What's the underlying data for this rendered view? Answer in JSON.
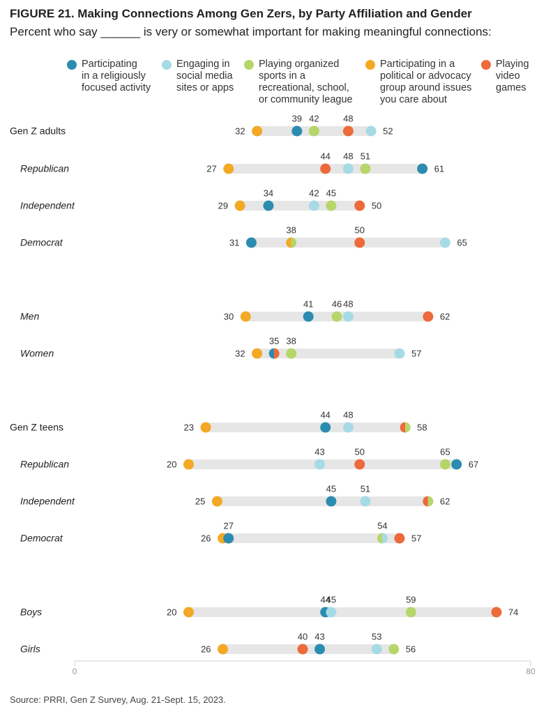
{
  "title": "FIGURE 21. Making Connections Among Gen Zers, by Party Affiliation and Gender",
  "subtitle": "Percent who say ______ is very or somewhat important for making meaningful connections:",
  "source": "Source: PRRI, Gen Z Survey, Aug. 21-Sept. 15, 2023.",
  "legend": [
    {
      "series": "religious",
      "color": "#2b8cb0",
      "lines": [
        "Participating",
        "in a religiously",
        "focused activity"
      ]
    },
    {
      "series": "social",
      "color": "#a6dbe5",
      "lines": [
        "Engaging in",
        "social media",
        "sites or apps"
      ]
    },
    {
      "series": "sports",
      "color": "#b6d66a",
      "lines": [
        "Playing organized",
        "sports in a",
        "recreational, school,",
        "or community league"
      ]
    },
    {
      "series": "political",
      "color": "#f3a925",
      "lines": [
        "Participating in a",
        "political or advocacy",
        "group around issues",
        "you care about"
      ]
    },
    {
      "series": "games",
      "color": "#ed6a3a",
      "lines": [
        "Playing",
        "video",
        "games"
      ]
    }
  ],
  "chart_data": {
    "type": "scatter",
    "subtype": "dot-plot",
    "xlim": [
      0,
      80
    ],
    "xticks": [
      "0",
      "80"
    ],
    "series_names": [
      "Participating in a religiously focused activity",
      "Engaging in social media sites or apps",
      "Playing organized sports in a recreational, school, or community league",
      "Participating in a political or advocacy group around issues you care about",
      "Playing video games"
    ],
    "rows": [
      {
        "label": "Gen Z adults",
        "italic": false,
        "values": {
          "religious": 39,
          "social": 52,
          "sports": 42,
          "political": 32,
          "games": 48
        }
      },
      {
        "label": "Republican",
        "italic": true,
        "values": {
          "religious": 61,
          "social": 48,
          "sports": 51,
          "political": 27,
          "games": 44
        }
      },
      {
        "label": "Independent",
        "italic": true,
        "values": {
          "religious": 34,
          "social": 42,
          "sports": 45,
          "political": 29,
          "games": 50
        }
      },
      {
        "label": "Democrat",
        "italic": true,
        "values": {
          "religious": 31,
          "social": 65,
          "sports": 38,
          "political": 38,
          "games": 50
        }
      },
      {
        "label": "Men",
        "italic": true,
        "values": {
          "religious": 41,
          "social": 48,
          "sports": 46,
          "political": 30,
          "games": 62
        }
      },
      {
        "label": "Women",
        "italic": true,
        "values": {
          "religious": 35,
          "social": 57,
          "sports": 38,
          "political": 32,
          "games": 35
        }
      },
      {
        "label": "Gen Z teens",
        "italic": false,
        "values": {
          "religious": 44,
          "social": 48,
          "sports": 58,
          "political": 23,
          "games": 58
        }
      },
      {
        "label": "Republican",
        "italic": true,
        "values": {
          "religious": 67,
          "social": 43,
          "sports": 65,
          "political": 20,
          "games": 50
        }
      },
      {
        "label": "Independent",
        "italic": true,
        "values": {
          "religious": 45,
          "social": 51,
          "sports": 62,
          "political": 25,
          "games": 62
        }
      },
      {
        "label": "Democrat",
        "italic": true,
        "values": {
          "religious": 27,
          "social": 54,
          "sports": 54,
          "political": 26,
          "games": 57
        }
      },
      {
        "label": "Boys",
        "italic": true,
        "values": {
          "religious": 44,
          "social": 45,
          "sports": 59,
          "political": 20,
          "games": 74
        }
      },
      {
        "label": "Girls",
        "italic": true,
        "values": {
          "religious": 43,
          "social": 53,
          "sports": 56,
          "political": 26,
          "games": 40
        }
      }
    ],
    "annotations": [
      {
        "row": 0,
        "labels": [
          {
            "text": "32",
            "pos": "left"
          },
          {
            "text": "39",
            "at": 39
          },
          {
            "text": "42",
            "at": 42
          },
          {
            "text": "48",
            "at": 48
          },
          {
            "text": "52",
            "pos": "right"
          }
        ]
      },
      {
        "row": 1,
        "labels": [
          {
            "text": "27",
            "pos": "left"
          },
          {
            "text": "44",
            "at": 44
          },
          {
            "text": "48",
            "at": 48
          },
          {
            "text": "51",
            "at": 51
          },
          {
            "text": "61",
            "pos": "right"
          }
        ]
      },
      {
        "row": 2,
        "labels": [
          {
            "text": "29",
            "pos": "left"
          },
          {
            "text": "34",
            "at": 34
          },
          {
            "text": "42",
            "at": 42
          },
          {
            "text": "45",
            "at": 45
          },
          {
            "text": "50",
            "pos": "right"
          }
        ]
      },
      {
        "row": 3,
        "labels": [
          {
            "text": "31",
            "pos": "left"
          },
          {
            "text": "38",
            "at": 38
          },
          {
            "text": "50",
            "at": 50
          },
          {
            "text": "65",
            "pos": "right"
          }
        ]
      },
      {
        "row": 4,
        "labels": [
          {
            "text": "30",
            "pos": "left"
          },
          {
            "text": "41",
            "at": 41
          },
          {
            "text": "46",
            "at": 46
          },
          {
            "text": "48",
            "at": 48
          },
          {
            "text": "62",
            "pos": "right"
          }
        ]
      },
      {
        "row": 5,
        "labels": [
          {
            "text": "32",
            "pos": "left"
          },
          {
            "text": "35",
            "at": 35
          },
          {
            "text": "38",
            "at": 38
          },
          {
            "text": "57",
            "pos": "right"
          }
        ]
      },
      {
        "row": 6,
        "labels": [
          {
            "text": "23",
            "pos": "left"
          },
          {
            "text": "44",
            "at": 44
          },
          {
            "text": "48",
            "at": 48
          },
          {
            "text": "58",
            "pos": "right"
          }
        ]
      },
      {
        "row": 7,
        "labels": [
          {
            "text": "20",
            "pos": "left"
          },
          {
            "text": "43",
            "at": 43
          },
          {
            "text": "50",
            "at": 50
          },
          {
            "text": "65",
            "at": 65
          },
          {
            "text": "67",
            "pos": "right"
          }
        ]
      },
      {
        "row": 8,
        "labels": [
          {
            "text": "25",
            "pos": "left"
          },
          {
            "text": "45",
            "at": 45
          },
          {
            "text": "51",
            "at": 51
          },
          {
            "text": "62",
            "pos": "right"
          }
        ]
      },
      {
        "row": 9,
        "labels": [
          {
            "text": "26",
            "pos": "left"
          },
          {
            "text": "27",
            "at": 27
          },
          {
            "text": "54",
            "at": 54
          },
          {
            "text": "57",
            "pos": "right"
          }
        ]
      },
      {
        "row": 10,
        "labels": [
          {
            "text": "20",
            "pos": "left"
          },
          {
            "text": "44",
            "at": 44
          },
          {
            "text": "45",
            "at": 45
          },
          {
            "text": "59",
            "at": 59
          },
          {
            "text": "74",
            "pos": "right"
          }
        ]
      },
      {
        "row": 11,
        "labels": [
          {
            "text": "26",
            "pos": "left"
          },
          {
            "text": "40",
            "at": 40
          },
          {
            "text": "43",
            "at": 43
          },
          {
            "text": "53",
            "at": 53
          },
          {
            "text": "56",
            "pos": "right"
          }
        ]
      }
    ]
  }
}
